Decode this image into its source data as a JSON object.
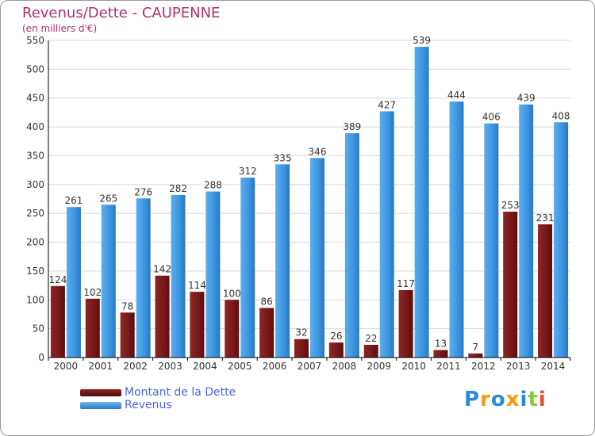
{
  "header": {
    "title": "Revenus/Dette - CAUPENNE",
    "subtitle": "(en milliers d'€)"
  },
  "chart_data": {
    "type": "bar",
    "title": "Revenus/Dette - CAUPENNE",
    "ylabel": "(en milliers d'€)",
    "xlabel": "",
    "ylim": [
      0,
      550
    ],
    "yticks": [
      0,
      50,
      100,
      150,
      200,
      250,
      300,
      350,
      400,
      450,
      500,
      550
    ],
    "grid": true,
    "categories": [
      "2000",
      "2001",
      "2002",
      "2003",
      "2004",
      "2005",
      "2006",
      "2007",
      "2008",
      "2009",
      "2010",
      "2011",
      "2012",
      "2013",
      "2014"
    ],
    "series": [
      {
        "name": "Montant de la Dette",
        "color": "#7a1a1a",
        "values": [
          124,
          102,
          78,
          142,
          114,
          100,
          86,
          32,
          26,
          22,
          117,
          13,
          7,
          253,
          231
        ]
      },
      {
        "name": "Revenus",
        "color": "#3b94e0",
        "values": [
          261,
          265,
          276,
          282,
          288,
          312,
          335,
          346,
          389,
          427,
          539,
          444,
          406,
          439,
          408
        ]
      }
    ]
  },
  "legend": {
    "items": [
      {
        "label": "Montant de la Dette",
        "color": "#7a1a1a"
      },
      {
        "label": "Revenus",
        "color": "#3b94e0"
      }
    ]
  },
  "logo": {
    "text": "Proxiti",
    "letters": [
      {
        "ch": "P",
        "color": "#2a8ad4"
      },
      {
        "ch": "r",
        "color": "#f39c12"
      },
      {
        "ch": "o",
        "color": "#2a8ad4"
      },
      {
        "ch": "x",
        "color": "#f39c12"
      },
      {
        "ch": "i",
        "color": "#2a8ad4"
      },
      {
        "ch": "t",
        "color": "#8cc63f"
      },
      {
        "ch": "i",
        "color": "#e74c3c"
      }
    ]
  }
}
